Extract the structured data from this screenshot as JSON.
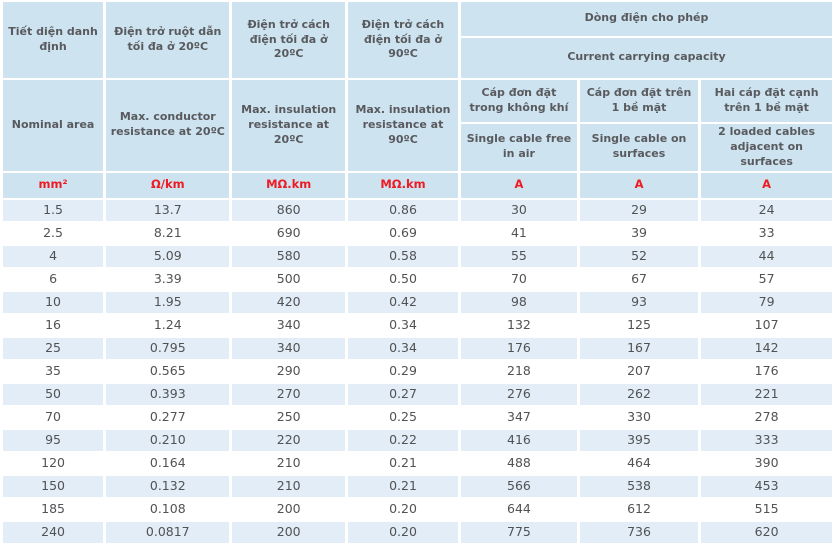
{
  "table": {
    "name": "cable-specification-table",
    "header": {
      "nominal_area": {
        "vi": "Tiết diện danh định",
        "en": "Nominal area",
        "unit": "mm²"
      },
      "conductor_resistance": {
        "vi": "Điện trở ruột dẫn tối đa ở 20ºC",
        "en": "Max. conductor resistance at 20ºC",
        "unit": "Ω/km"
      },
      "insulation_resistance_20": {
        "vi": "Điện trở cách điện tối đa ở 20ºC",
        "en": "Max. insulation resistance at 20ºC",
        "unit": "MΩ.km"
      },
      "insulation_resistance_90": {
        "vi": "Điện trở cách điện tối đa ở 90ºC",
        "en": "Max. insulation resistance at 90ºC",
        "unit": "MΩ.km"
      },
      "current_group": {
        "vi": "Dòng điện cho phép",
        "en": "Current carrying capacity"
      },
      "single_cable_air": {
        "vi": "Cáp đơn đặt trong không khí",
        "en": "Single cable free in air",
        "unit": "A"
      },
      "single_cable_surface": {
        "vi": "Cáp đơn đặt trên 1 bề mặt",
        "en": "Single cable on surfaces",
        "unit": "A"
      },
      "two_cables_adjacent": {
        "vi": "Hai cáp đặt cạnh trên 1 bề mặt",
        "en": "2 loaded cables adjacent on surfaces",
        "unit": "A"
      }
    },
    "rows": [
      [
        "1.5",
        "13.7",
        "860",
        "0.86",
        "30",
        "29",
        "24"
      ],
      [
        "2.5",
        "8.21",
        "690",
        "0.69",
        "41",
        "39",
        "33"
      ],
      [
        "4",
        "5.09",
        "580",
        "0.58",
        "55",
        "52",
        "44"
      ],
      [
        "6",
        "3.39",
        "500",
        "0.50",
        "70",
        "67",
        "57"
      ],
      [
        "10",
        "1.95",
        "420",
        "0.42",
        "98",
        "93",
        "79"
      ],
      [
        "16",
        "1.24",
        "340",
        "0.34",
        "132",
        "125",
        "107"
      ],
      [
        "25",
        "0.795",
        "340",
        "0.34",
        "176",
        "167",
        "142"
      ],
      [
        "35",
        "0.565",
        "290",
        "0.29",
        "218",
        "207",
        "176"
      ],
      [
        "50",
        "0.393",
        "270",
        "0.27",
        "276",
        "262",
        "221"
      ],
      [
        "70",
        "0.277",
        "250",
        "0.25",
        "347",
        "330",
        "278"
      ],
      [
        "95",
        "0.210",
        "220",
        "0.22",
        "416",
        "395",
        "333"
      ],
      [
        "120",
        "0.164",
        "210",
        "0.21",
        "488",
        "464",
        "390"
      ],
      [
        "150",
        "0.132",
        "210",
        "0.21",
        "566",
        "538",
        "453"
      ],
      [
        "185",
        "0.108",
        "200",
        "0.20",
        "644",
        "612",
        "515"
      ],
      [
        "240",
        "0.0817",
        "200",
        "0.20",
        "775",
        "736",
        "620"
      ]
    ],
    "colors": {
      "header_bg": "#cde3ef",
      "alt_row_bg": "#e2edf7",
      "grid": "#ffffff",
      "accent_red": "#ed1c24",
      "header_text": "#595a5e",
      "data_text": "#515254"
    }
  }
}
